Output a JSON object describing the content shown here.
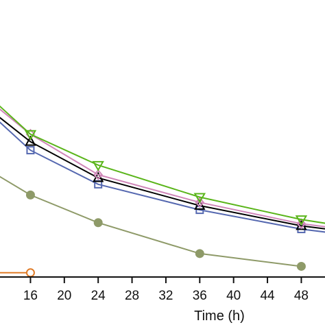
{
  "chart_data": {
    "type": "line",
    "title": "",
    "xlabel": "Time (h)",
    "ylabel": "",
    "xlim": [
      12.4,
      50.8
    ],
    "ylim": [
      0,
      26
    ],
    "x_ticks": [
      16,
      20,
      24,
      28,
      32,
      36,
      40,
      44,
      48
    ],
    "grid": false,
    "legend": "none",
    "series": [
      {
        "color": "#e07b27",
        "marker": "circle-open",
        "points": [
          {
            "x": 12,
            "y": 0.4
          },
          {
            "x": 16,
            "y": 0.4
          }
        ]
      },
      {
        "color": "#8e9a68",
        "marker": "circle-filled",
        "points": [
          {
            "x": 12,
            "y": 9.6
          },
          {
            "x": 16,
            "y": 7.7
          },
          {
            "x": 24,
            "y": 5.1
          },
          {
            "x": 36,
            "y": 2.2
          },
          {
            "x": 48,
            "y": 1.0
          }
        ]
      },
      {
        "color": "#5568b0",
        "marker": "square-open",
        "points": [
          {
            "x": 12,
            "y": 14.8
          },
          {
            "x": 16,
            "y": 11.9
          },
          {
            "x": 24,
            "y": 8.7
          },
          {
            "x": 36,
            "y": 6.3
          },
          {
            "x": 48,
            "y": 4.5
          },
          {
            "x": 52,
            "y": 4.1
          }
        ]
      },
      {
        "color": "#000000",
        "marker": "triangle-up-open",
        "points": [
          {
            "x": 12,
            "y": 15.2
          },
          {
            "x": 16,
            "y": 12.7
          },
          {
            "x": 24,
            "y": 9.3
          },
          {
            "x": 36,
            "y": 6.7
          },
          {
            "x": 48,
            "y": 4.8
          },
          {
            "x": 52,
            "y": 4.4
          }
        ]
      },
      {
        "color": "#cf86b8",
        "marker": "diamond-open",
        "points": [
          {
            "x": 12,
            "y": 16.0
          },
          {
            "x": 16,
            "y": 13.4
          },
          {
            "x": 24,
            "y": 9.6
          },
          {
            "x": 36,
            "y": 7.0
          },
          {
            "x": 48,
            "y": 5.0
          },
          {
            "x": 52,
            "y": 4.6
          }
        ]
      },
      {
        "color": "#5ab51a",
        "marker": "triangle-down-open",
        "points": [
          {
            "x": 12,
            "y": 16.3
          },
          {
            "x": 16,
            "y": 13.4
          },
          {
            "x": 24,
            "y": 10.5
          },
          {
            "x": 36,
            "y": 7.5
          },
          {
            "x": 48,
            "y": 5.4
          },
          {
            "x": 52,
            "y": 4.9
          }
        ]
      }
    ]
  }
}
